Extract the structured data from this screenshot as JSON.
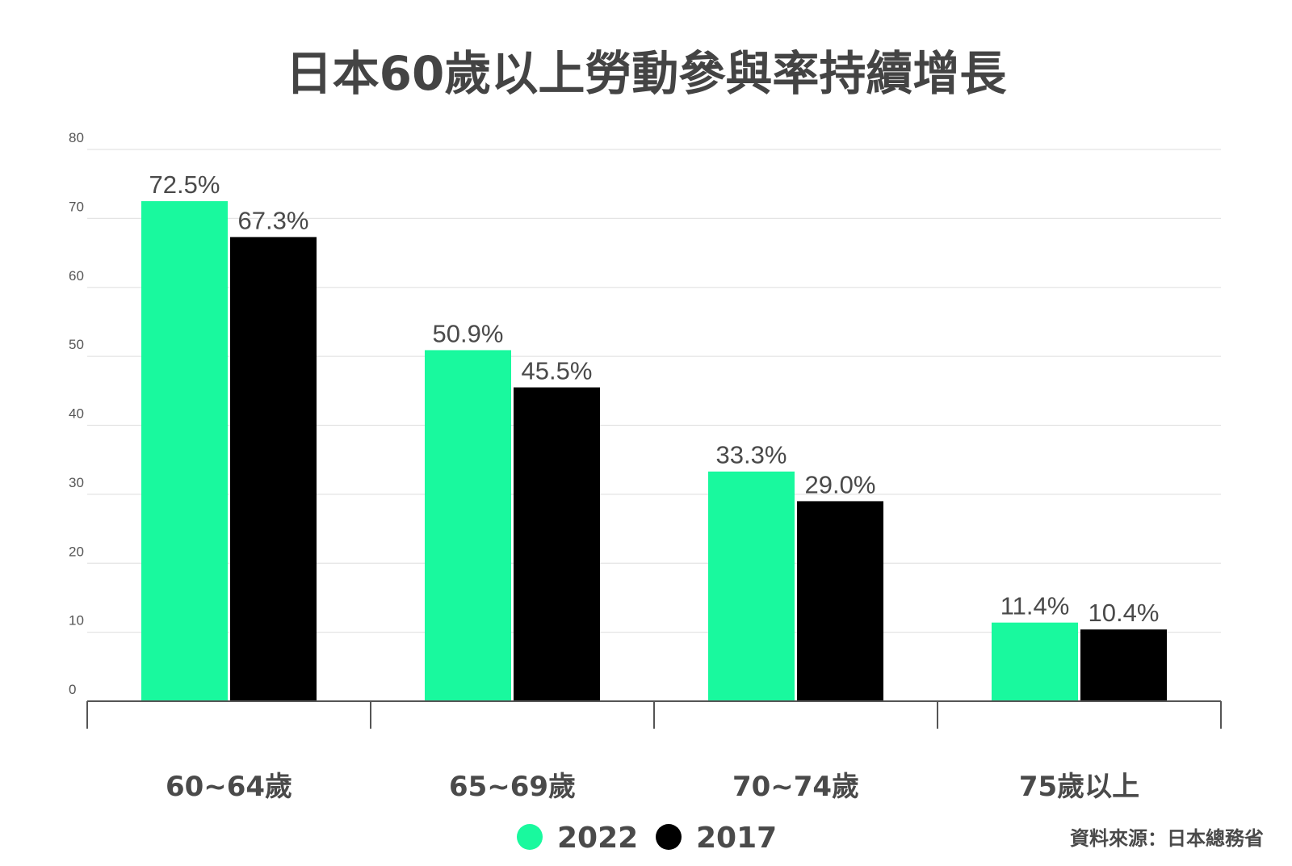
{
  "chart_data": {
    "type": "bar",
    "title": "日本60歲以上勞動參與率持續增長",
    "categories": [
      "60~64歲",
      "65~69歲",
      "70~74歲",
      "75歲以上"
    ],
    "series": [
      {
        "name": "2022",
        "color": "#19F99E",
        "values": [
          72.5,
          50.9,
          33.3,
          11.4
        ],
        "labels": [
          "72.5%",
          "50.9%",
          "33.3%",
          "11.4%"
        ]
      },
      {
        "name": "2017",
        "color": "#000000",
        "values": [
          67.3,
          45.5,
          29.0,
          10.4
        ],
        "labels": [
          "67.3%",
          "45.5%",
          "29.0%",
          "10.4%"
        ]
      }
    ],
    "ylim": [
      0,
      80
    ],
    "yticks": [
      0,
      10,
      20,
      30,
      40,
      50,
      60,
      70,
      80
    ],
    "ytick_labels": [
      "0",
      "10",
      "20",
      "30",
      "40",
      "50",
      "60",
      "70",
      "80"
    ],
    "grid": true,
    "legend_position": "bottom-center",
    "source": "資料來源：日本總務省"
  }
}
